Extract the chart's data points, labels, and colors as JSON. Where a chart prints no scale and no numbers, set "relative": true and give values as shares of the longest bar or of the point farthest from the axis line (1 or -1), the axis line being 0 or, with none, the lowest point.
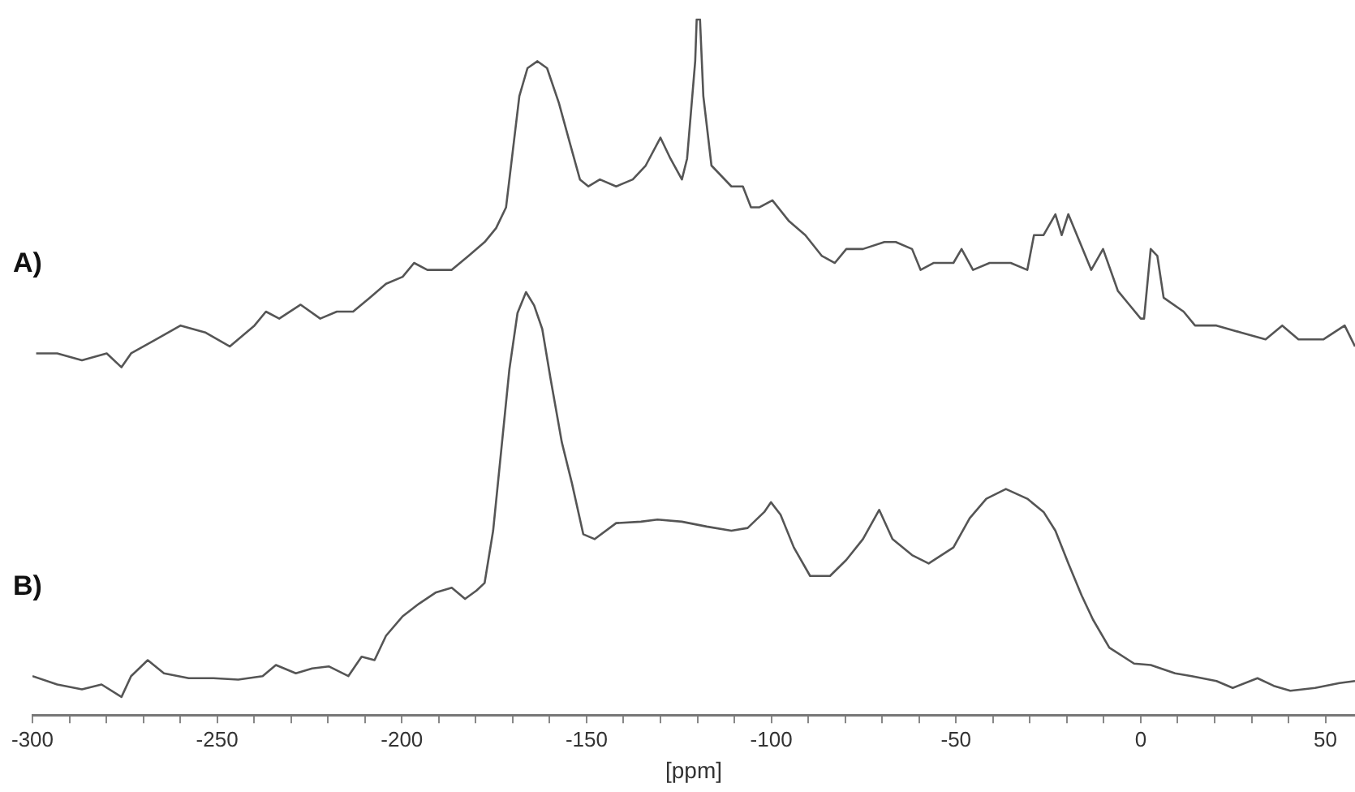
{
  "chart_data": {
    "type": "line",
    "xlabel": "[ppm]",
    "relative": true,
    "grid": false,
    "legend": false,
    "marker": "none",
    "line_style": "solid",
    "xlim": [
      -300,
      58
    ],
    "xticks": [
      -300,
      {
        "value": -290,
        "label": null
      },
      {
        "value": -280,
        "label": null
      },
      {
        "value": -270,
        "label": null
      },
      {
        "value": -260,
        "label": null
      },
      -250,
      {
        "value": -240,
        "label": null
      },
      {
        "value": -230,
        "label": null
      },
      {
        "value": -220,
        "label": null
      },
      {
        "value": -210,
        "label": null
      },
      -200,
      {
        "value": -190,
        "label": null
      },
      {
        "value": -180,
        "label": null
      },
      {
        "value": -170,
        "label": null
      },
      {
        "value": -160,
        "label": null
      },
      -150,
      {
        "value": -140,
        "label": null
      },
      {
        "value": -130,
        "label": null
      },
      {
        "value": -120,
        "label": null
      },
      {
        "value": -110,
        "label": null
      },
      -100,
      {
        "value": -90,
        "label": null
      },
      {
        "value": -80,
        "label": null
      },
      {
        "value": -70,
        "label": null
      },
      {
        "value": -60,
        "label": null
      },
      -50,
      {
        "value": -40,
        "label": null
      },
      {
        "value": -30,
        "label": null
      },
      {
        "value": -20,
        "label": null
      },
      {
        "value": -10,
        "label": null
      },
      0,
      {
        "value": 10,
        "label": null
      },
      {
        "value": 20,
        "label": null
      },
      {
        "value": 30,
        "label": null
      },
      {
        "value": 40,
        "label": null
      },
      50
    ],
    "series": [
      {
        "name": "A)",
        "color": "#555555",
        "x": [
          -299,
          -293.3,
          -286.6,
          -279.9,
          -275.9,
          -273.3,
          -266.6,
          -259.9,
          -253.2,
          -246.6,
          -239.9,
          -236.8,
          -233.2,
          -227.4,
          -222.1,
          -217.6,
          -213.2,
          -208.7,
          -204.3,
          -199.8,
          -196.7,
          -193.1,
          -186.5,
          -182,
          -177.6,
          -174.5,
          -171.8,
          -170,
          -168.2,
          -166,
          -163.3,
          -160.7,
          -157.5,
          -154.4,
          -151.8,
          -149.5,
          -146.4,
          -142,
          -137.5,
          -134,
          -130,
          -127.3,
          -124.2,
          -122.8,
          -120.6,
          -120.2,
          -119.3,
          -118.4,
          -116.2,
          -110.8,
          -107.7,
          -105.5,
          -103.2,
          -99.7,
          -95.2,
          -90.8,
          -86.3,
          -82.8,
          -79.7,
          -75.2,
          -69.4,
          -66.3,
          -61.9,
          -59.6,
          -56.1,
          -50.7,
          -48.5,
          -45.4,
          -40.9,
          -35.2,
          -30.7,
          -28.9,
          -26.3,
          -23.1,
          -21.4,
          -19.6,
          -16.5,
          -13.4,
          -10.2,
          -6.2,
          -3.1,
          0,
          0.9,
          2.7,
          4.5,
          6.2,
          11.6,
          14.7,
          20.5,
          27.1,
          33.8,
          38.3,
          42.7,
          49.4,
          55.2,
          58
        ],
        "values": [
          0.52,
          0.52,
          0.51,
          0.52,
          0.5,
          0.52,
          0.54,
          0.56,
          0.55,
          0.53,
          0.56,
          0.58,
          0.57,
          0.59,
          0.57,
          0.58,
          0.58,
          0.6,
          0.62,
          0.63,
          0.65,
          0.64,
          0.64,
          0.66,
          0.68,
          0.7,
          0.73,
          0.81,
          0.89,
          0.93,
          0.94,
          0.93,
          0.88,
          0.82,
          0.77,
          0.76,
          0.77,
          0.76,
          0.77,
          0.79,
          0.83,
          0.8,
          0.77,
          0.8,
          0.94,
          1,
          1,
          0.89,
          0.79,
          0.76,
          0.76,
          0.73,
          0.73,
          0.74,
          0.71,
          0.69,
          0.66,
          0.65,
          0.67,
          0.67,
          0.68,
          0.68,
          0.67,
          0.64,
          0.65,
          0.65,
          0.67,
          0.64,
          0.65,
          0.65,
          0.64,
          0.69,
          0.69,
          0.72,
          0.69,
          0.72,
          0.68,
          0.64,
          0.67,
          0.61,
          0.59,
          0.57,
          0.57,
          0.67,
          0.66,
          0.6,
          0.58,
          0.56,
          0.56,
          0.55,
          0.54,
          0.56,
          0.54,
          0.54,
          0.56,
          0.53
        ]
      },
      {
        "name": "B)",
        "color": "#555555",
        "x": [
          -300,
          -293.3,
          -286.6,
          -281.3,
          -275.9,
          -273.3,
          -268.8,
          -264.4,
          -257.7,
          -251,
          -244.3,
          -237.7,
          -234.1,
          -228.7,
          -224.3,
          -219.8,
          -214.5,
          -210.9,
          -207.4,
          -204.3,
          -199.8,
          -195.4,
          -190.9,
          -186.5,
          -182.9,
          -179.8,
          -177.6,
          -175.3,
          -173.1,
          -170.9,
          -168.7,
          -166.4,
          -164.2,
          -162,
          -159.8,
          -156.7,
          -154,
          -150.9,
          -147.8,
          -142,
          -135.3,
          -130.8,
          -124.2,
          -117.5,
          -110.8,
          -106.4,
          -101.9,
          -100.1,
          -97.5,
          -93.9,
          -89.5,
          -84.1,
          -79.7,
          -75.2,
          -70.8,
          -67.2,
          -61.9,
          -57.4,
          -50.7,
          -46.3,
          -41.8,
          -36.5,
          -30.7,
          -26.3,
          -23.1,
          -19.6,
          -16,
          -12.9,
          -8.5,
          -1.8,
          2.7,
          9.3,
          13.8,
          20.5,
          24.9,
          31.6,
          36,
          40.5,
          47.2,
          53.8,
          58
        ],
        "values": [
          0.056,
          0.044,
          0.037,
          0.044,
          0.026,
          0.056,
          0.079,
          0.06,
          0.053,
          0.053,
          0.051,
          0.056,
          0.072,
          0.06,
          0.067,
          0.07,
          0.056,
          0.084,
          0.079,
          0.114,
          0.142,
          0.16,
          0.176,
          0.183,
          0.167,
          0.179,
          0.19,
          0.265,
          0.381,
          0.497,
          0.578,
          0.608,
          0.589,
          0.555,
          0.485,
          0.392,
          0.334,
          0.26,
          0.253,
          0.276,
          0.278,
          0.281,
          0.278,
          0.271,
          0.265,
          0.269,
          0.292,
          0.306,
          0.288,
          0.241,
          0.2,
          0.2,
          0.223,
          0.253,
          0.295,
          0.253,
          0.23,
          0.218,
          0.241,
          0.283,
          0.311,
          0.325,
          0.311,
          0.292,
          0.265,
          0.218,
          0.172,
          0.137,
          0.097,
          0.074,
          0.072,
          0.06,
          0.056,
          0.049,
          0.039,
          0.053,
          0.042,
          0.035,
          0.039,
          0.046,
          0.049
        ]
      }
    ]
  }
}
